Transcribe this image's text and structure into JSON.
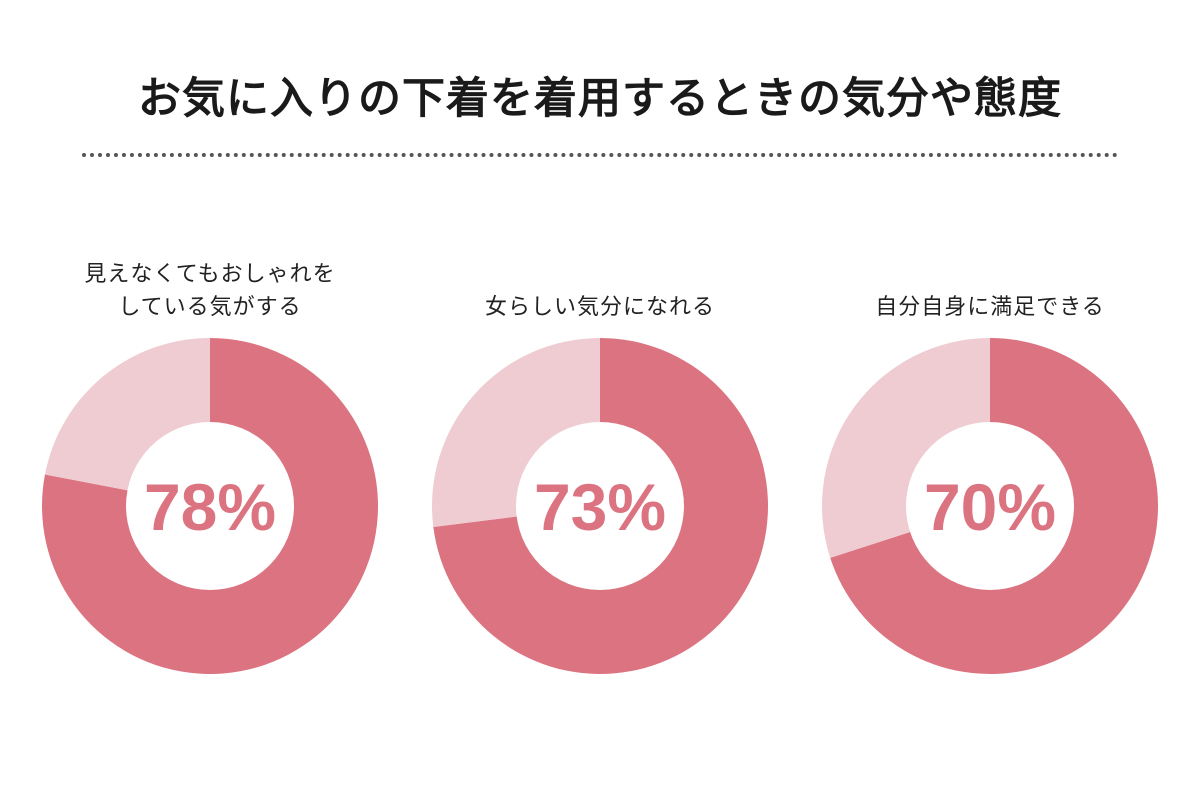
{
  "title": "お気に入りの下着を着用するときの気分や態度",
  "colors": {
    "primary": "#dc7380",
    "secondary": "#eeccd2",
    "text": "#222222"
  },
  "chart_data": [
    {
      "type": "pie",
      "label_lines": [
        "見えなくてもおしゃれを",
        "している気がする"
      ],
      "value": 78,
      "value_label": "78%"
    },
    {
      "type": "pie",
      "label_lines": [
        "女らしい気分になれる"
      ],
      "value": 73,
      "value_label": "73%"
    },
    {
      "type": "pie",
      "label_lines": [
        "自分自身に満足できる"
      ],
      "value": 70,
      "value_label": "70%"
    }
  ]
}
